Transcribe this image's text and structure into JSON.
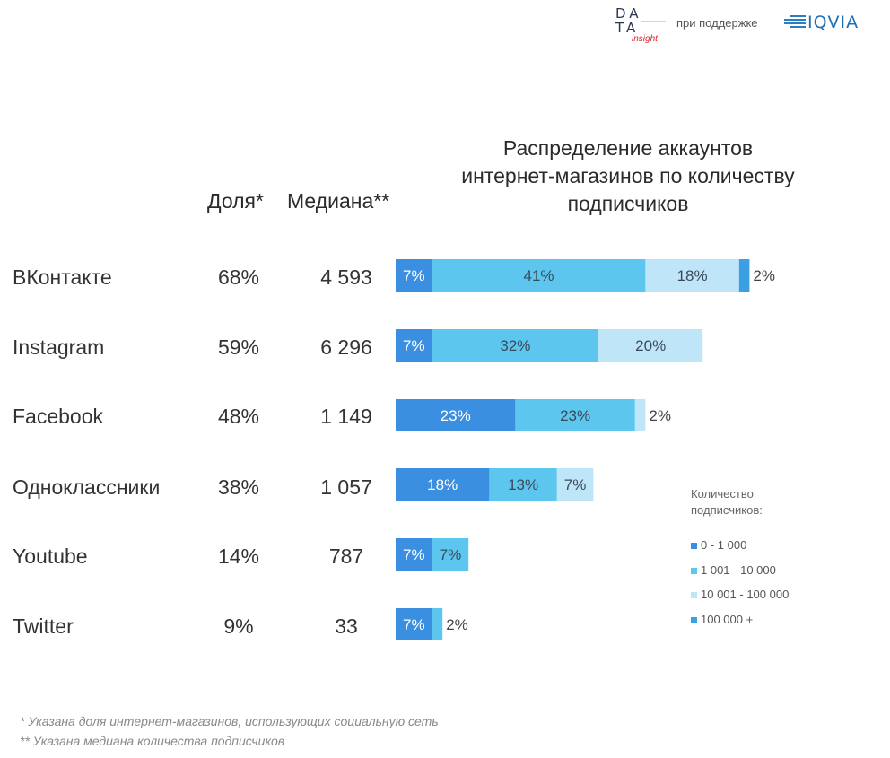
{
  "header": {
    "logo_line1": "DA",
    "logo_line2": "TA",
    "logo_sub": "insight",
    "support_text": "при поддержке",
    "partner": "IQVIA"
  },
  "columns": {
    "share": "Доля*",
    "median": "Медиана**"
  },
  "colors": {
    "band1": "#3b8fe0",
    "band2": "#5cc6ee",
    "band3": "#bfe6f8",
    "band4": "#3b9fe4"
  },
  "chart_data": {
    "type": "bar",
    "orientation": "horizontal",
    "stacked": true,
    "title": "Распределение аккаунтов интернет-магазинов по количеству подписчиков",
    "title_lines": [
      "Распределение аккаунтов",
      "интернет-магазинов по количеству",
      "подписчиков"
    ],
    "categories": [
      "ВКонтакте",
      "Instagram",
      "Facebook",
      "Одноклассники",
      "Youtube",
      "Twitter"
    ],
    "share": [
      "68%",
      "59%",
      "48%",
      "38%",
      "14%",
      "9%"
    ],
    "median": [
      "4 593",
      "6 296",
      "1 149",
      "1 057",
      "787",
      "33"
    ],
    "legend_title": "Количество подписчиков:",
    "series": [
      {
        "name": "0 - 1 000",
        "values": [
          7,
          7,
          23,
          18,
          7,
          7
        ]
      },
      {
        "name": "1 001 - 10 000",
        "values": [
          41,
          32,
          23,
          13,
          7,
          2
        ]
      },
      {
        "name": "10 001 - 100 000",
        "values": [
          18,
          20,
          2,
          7,
          0,
          0
        ]
      },
      {
        "name": "100 000 +",
        "values": [
          2,
          0,
          0,
          0,
          0,
          0
        ]
      }
    ]
  },
  "footnotes": [
    "* Указана доля интернет-магазинов, использующих социальную сеть",
    "** Указана медиана количества подписчиков"
  ]
}
